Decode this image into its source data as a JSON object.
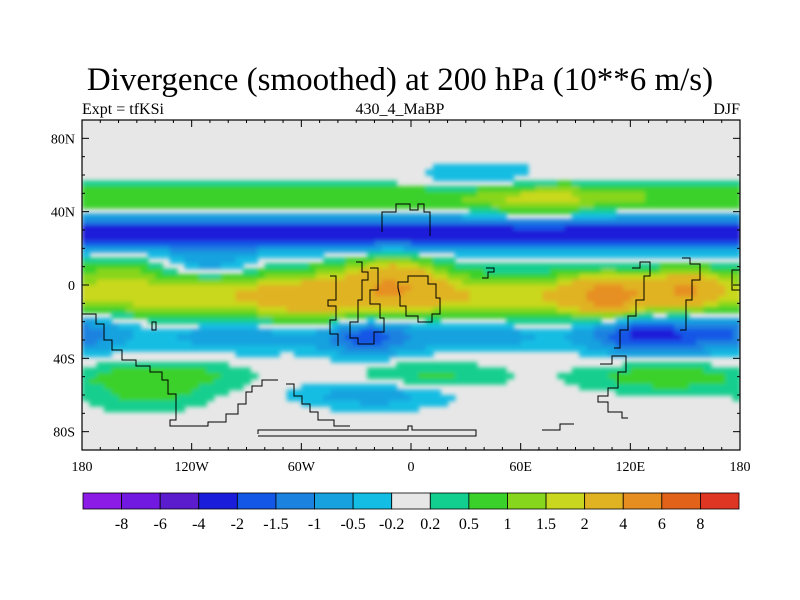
{
  "chart_data": {
    "type": "heatmap",
    "title": "Divergence (smoothed) at 200 hPa (10**6 m/s)",
    "subtitle_left": "Expt = tfKSi",
    "subtitle_center": "430_4_MaBP",
    "subtitle_right": "DJF",
    "x_ticks": [
      {
        "value": -180,
        "label": "180"
      },
      {
        "value": -120,
        "label": "120W"
      },
      {
        "value": -60,
        "label": "60W"
      },
      {
        "value": 0,
        "label": "0"
      },
      {
        "value": 60,
        "label": "60E"
      },
      {
        "value": 120,
        "label": "120E"
      },
      {
        "value": 180,
        "label": "180"
      }
    ],
    "y_ticks": [
      {
        "value": 80,
        "label": "80N"
      },
      {
        "value": 40,
        "label": "40N"
      },
      {
        "value": 0,
        "label": "0"
      },
      {
        "value": -40,
        "label": "40S"
      },
      {
        "value": -80,
        "label": "80S"
      }
    ],
    "xlim": [
      -180,
      180
    ],
    "ylim": [
      -90,
      90
    ],
    "colorbar": {
      "levels": [
        "-8",
        "-6",
        "-4",
        "-2",
        "-1.5",
        "-1",
        "-0.5",
        "-0.2",
        "0.2",
        "0.5",
        "1",
        "1.5",
        "2",
        "4",
        "6",
        "8"
      ],
      "colors": [
        "#8c1be6",
        "#7119e0",
        "#5a1ccd",
        "#1a1dd9",
        "#1357e6",
        "#1b82e0",
        "#17a2df",
        "#13bde3",
        "#e7e7e7",
        "#13cf8f",
        "#3bd12b",
        "#87d61e",
        "#c9d81f",
        "#e0b322",
        "#e68f20",
        "#e3621a",
        "#de3622"
      ]
    },
    "series": [
      {
        "name": "tropical divergence band",
        "center_lat": -5,
        "lon_range": [
          -180,
          180
        ],
        "value": 2
      },
      {
        "name": "subtropical convergence band (NH)",
        "center_lat": 28,
        "lon_range": [
          -180,
          180
        ],
        "value": -2
      },
      {
        "name": "divergence maximum (S. America/Africa)",
        "lon": -5,
        "lat": 2,
        "value": 4
      },
      {
        "name": "divergence maximum (Maritime Continent)",
        "lon": 110,
        "lat": -5,
        "value": 6
      },
      {
        "name": "divergence maximum (W. Pacific)",
        "lon": 150,
        "lat": -2,
        "value": 4
      }
    ]
  }
}
